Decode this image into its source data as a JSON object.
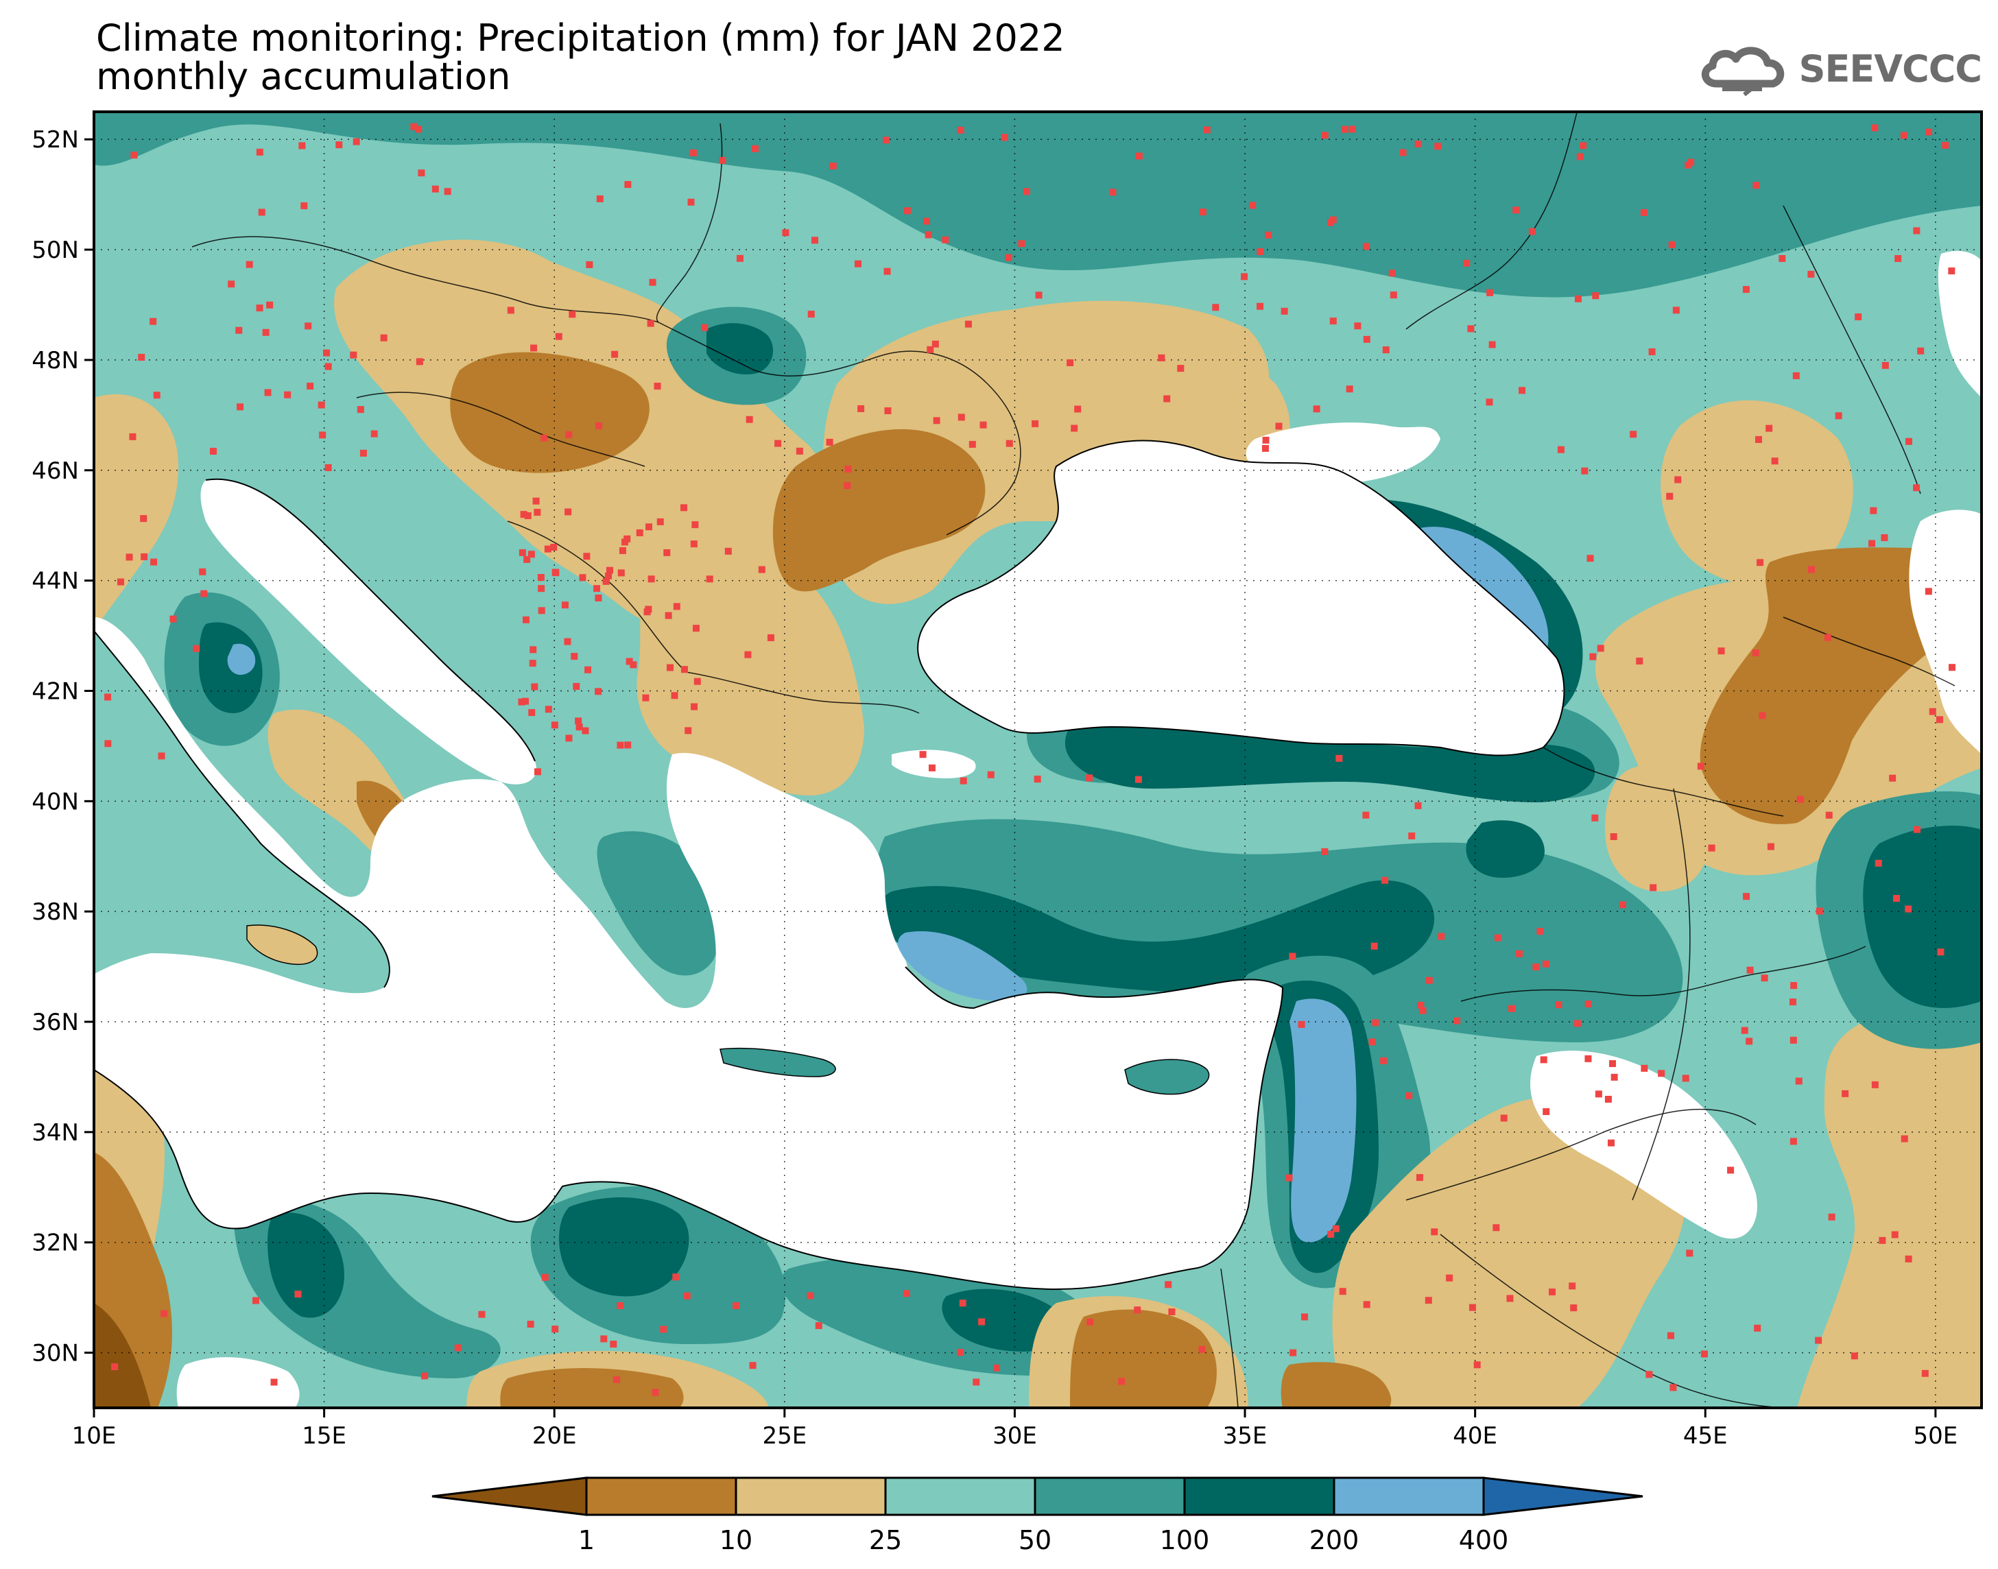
{
  "title": {
    "line1": "Climate monitoring: Precipitation (mm) for JAN 2022",
    "line2": "monthly accumulation"
  },
  "logo": {
    "text": "SEEVCCC",
    "icon": "cloud-icon"
  },
  "axes": {
    "lat_labels": [
      "52N",
      "50N",
      "48N",
      "46N",
      "44N",
      "42N",
      "40N",
      "38N",
      "36N",
      "34N",
      "32N",
      "30N"
    ],
    "lon_labels": [
      "10E",
      "15E",
      "20E",
      "25E",
      "30E",
      "35E",
      "40E",
      "45E",
      "50E"
    ]
  },
  "legend": {
    "thresholds": [
      "1",
      "10",
      "25",
      "50",
      "100",
      "200",
      "400"
    ],
    "colors": [
      "#8a520f",
      "#b87c2c",
      "#dfc07e",
      "#7ecabd",
      "#389a91",
      "#006660",
      "#6aaed6",
      "#1f66a8"
    ]
  },
  "map_colors": {
    "sea": "#ffffff",
    "coast": "#000000",
    "station_marker": "#ef4444"
  }
}
